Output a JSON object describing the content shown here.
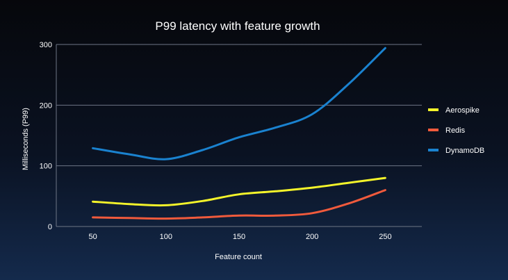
{
  "chart_data": {
    "type": "line",
    "title": "P99 latency with feature growth",
    "xlabel": "Feature count",
    "ylabel": "Milliseconds (P99)",
    "xlim": [
      25,
      275
    ],
    "ylim": [
      0,
      300
    ],
    "xticks": [
      50,
      100,
      150,
      200,
      250
    ],
    "yticks": [
      0,
      100,
      200,
      300
    ],
    "grid": "horizontal",
    "legend_position": "right",
    "x": [
      50,
      75,
      100,
      125,
      150,
      175,
      200,
      225,
      250
    ],
    "series": [
      {
        "name": "Aerospike",
        "color": "#f4f42a",
        "values": [
          41,
          37,
          35,
          42,
          53,
          58,
          64,
          72,
          80
        ]
      },
      {
        "name": "Redis",
        "color": "#f05a3c",
        "values": [
          15,
          14,
          13,
          15,
          18,
          18,
          22,
          38,
          60
        ]
      },
      {
        "name": "DynamoDB",
        "color": "#1a82cf",
        "values": [
          129,
          119,
          111,
          126,
          147,
          163,
          185,
          235,
          294
        ]
      }
    ]
  }
}
